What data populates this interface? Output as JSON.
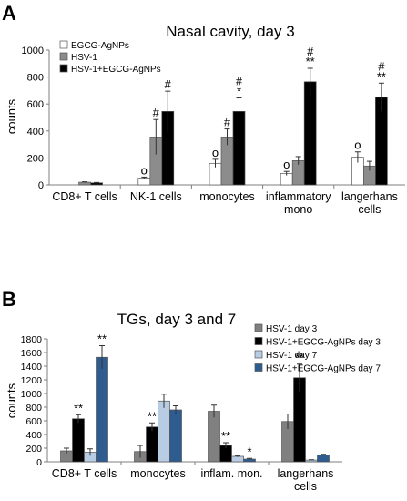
{
  "chart_data": [
    {
      "panel_label": "A",
      "type": "bar",
      "title": "Nasal cavity, day 3",
      "ylabel": "counts",
      "ylim": [
        0,
        1000
      ],
      "yticks": [
        0,
        200,
        400,
        600,
        800,
        1000
      ],
      "grid": false,
      "legend_position": "top-left",
      "categories": [
        [
          "CD8+ T cells"
        ],
        [
          "NK-1 cells"
        ],
        [
          "monocytes"
        ],
        [
          "inflammatory",
          "mono"
        ],
        [
          "langerhans",
          "cells"
        ]
      ],
      "series": [
        {
          "name": "EGCG-AgNPs",
          "color": "#ffffff",
          "values": [
            0,
            50,
            160,
            85,
            205
          ],
          "errors": [
            0,
            8,
            30,
            15,
            40
          ],
          "annotations": [
            "",
            "o",
            "o",
            "o",
            "o"
          ]
        },
        {
          "name": "HSV-1",
          "color": "#8c8c8c",
          "values": [
            20,
            355,
            355,
            180,
            140
          ],
          "errors": [
            3,
            130,
            60,
            30,
            35
          ],
          "annotations": [
            "",
            "#",
            "#",
            "",
            ""
          ]
        },
        {
          "name": "HSV-1+EGCG-AgNPs",
          "color": "#000000",
          "values": [
            15,
            545,
            545,
            765,
            650
          ],
          "errors": [
            3,
            150,
            100,
            100,
            105
          ],
          "annotations": [
            "",
            "#",
            "#\n*",
            "#\n**",
            "#\n**"
          ]
        }
      ]
    },
    {
      "panel_label": "B",
      "type": "bar",
      "title": "TGs, day 3 and 7",
      "ylabel": "counts",
      "ylim": [
        0,
        1800
      ],
      "yticks": [
        0,
        200,
        400,
        600,
        800,
        1000,
        1200,
        1400,
        1600,
        1800
      ],
      "grid": false,
      "legend_position": "top-right",
      "categories": [
        [
          "CD8+ T cells"
        ],
        [
          "monocytes"
        ],
        [
          "inflam. mon."
        ],
        [
          "langerhans",
          "cells"
        ]
      ],
      "series": [
        {
          "name": "HSV-1 day 3",
          "color": "#808080",
          "values": [
            160,
            150,
            740,
            590
          ],
          "errors": [
            40,
            90,
            90,
            110
          ],
          "annotations": [
            "",
            "",
            "",
            ""
          ]
        },
        {
          "name": "HSV-1+EGCG-AgNPs day 3",
          "color": "#000000",
          "values": [
            630,
            510,
            240,
            1230
          ],
          "errors": [
            60,
            60,
            40,
            200
          ],
          "annotations": [
            "**",
            "**",
            "**",
            "**"
          ]
        },
        {
          "name": "HSV-1 day 7",
          "color": "#b8cce4",
          "values": [
            140,
            890,
            80,
            25
          ],
          "errors": [
            50,
            100,
            10,
            5
          ],
          "annotations": [
            "",
            "",
            "",
            ""
          ]
        },
        {
          "name": "HSV-1+EGCG-AgNPs day 7",
          "color": "#2e5c91",
          "values": [
            1530,
            760,
            40,
            100
          ],
          "errors": [
            170,
            60,
            10,
            10
          ],
          "annotations": [
            "**",
            "",
            "*",
            ""
          ]
        }
      ]
    }
  ]
}
